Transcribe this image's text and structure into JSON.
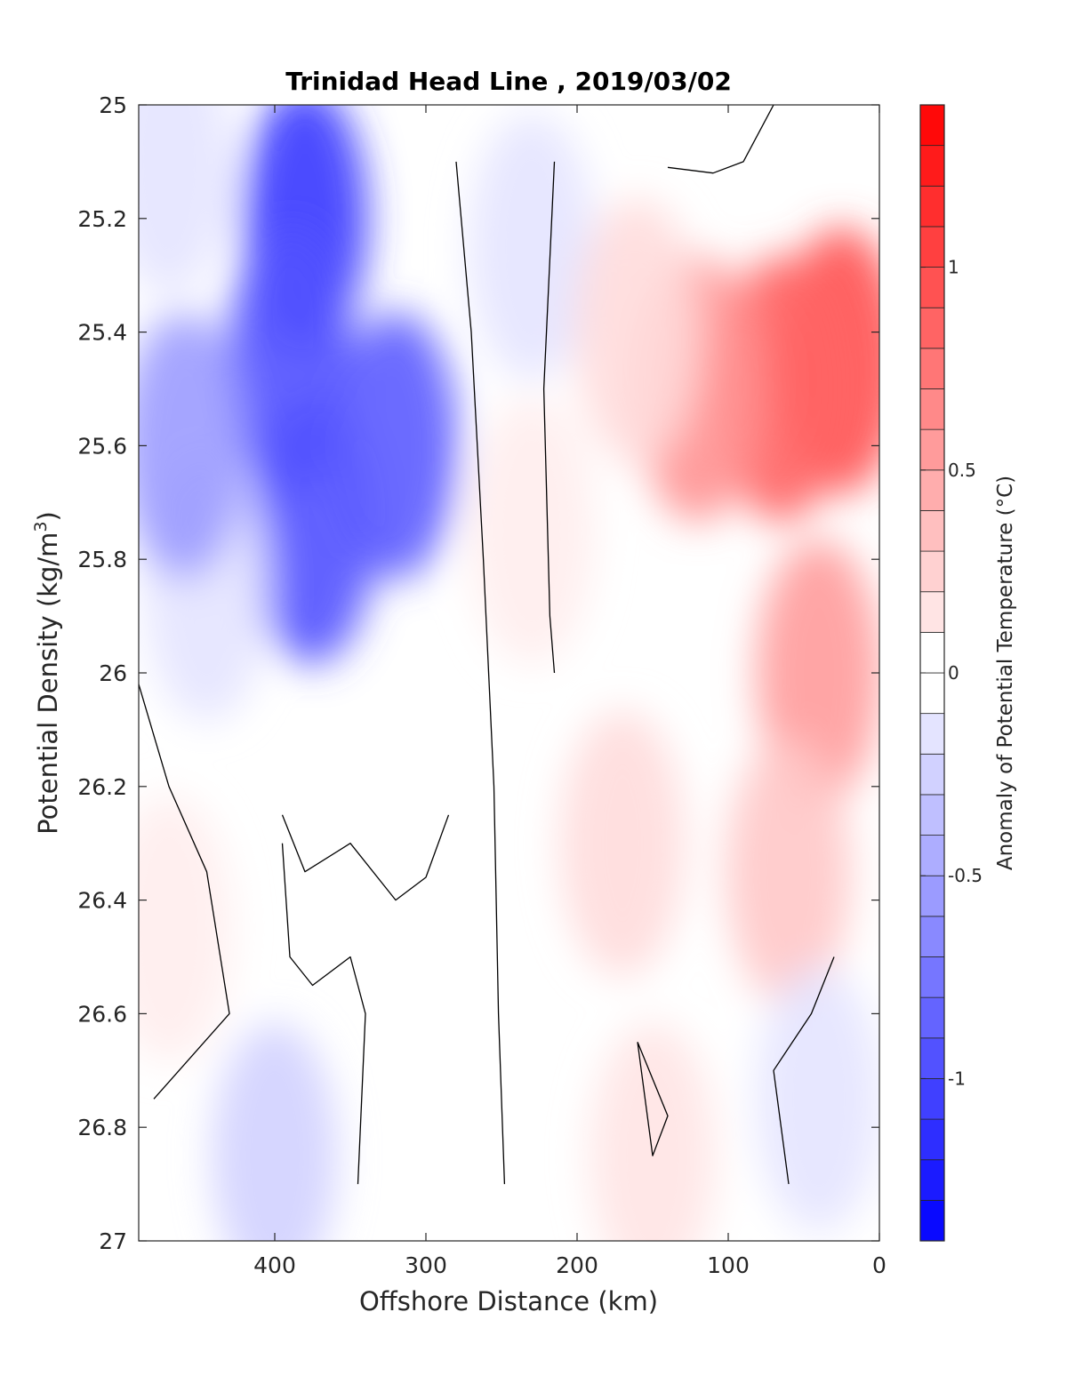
{
  "chart_data": {
    "type": "heatmap",
    "title": "Trinidad Head Line , 2019/03/02",
    "xlabel": "Offshore Distance (km)",
    "ylabel": "Potential Density (kg/m",
    "ylabel_sup": "3",
    "ylabel_close": ")",
    "xlim": [
      490,
      0
    ],
    "ylim": [
      25,
      27
    ],
    "x_ticks": [
      400,
      300,
      200,
      100,
      0
    ],
    "y_ticks": [
      25,
      25.2,
      25.4,
      25.6,
      25.8,
      26,
      26.2,
      26.4,
      26.6,
      26.8,
      27
    ],
    "colorbar": {
      "label": "Anomaly of Potential Temperature (°C)",
      "range": [
        -1.4,
        1.4
      ],
      "step": 0.1,
      "ticks": [
        1,
        0.5,
        0,
        -0.5,
        -1
      ],
      "colormap": "blue-white-red",
      "low_color": "#0000ff",
      "mid_color": "#ffffff",
      "high_color": "#ff0000"
    },
    "features": [
      {
        "x": 380,
        "y": 25.2,
        "value": -1.1
      },
      {
        "x": 390,
        "y": 25.45,
        "value": -0.95
      },
      {
        "x": 375,
        "y": 25.75,
        "value": -0.95
      },
      {
        "x": 320,
        "y": 25.6,
        "value": -0.9
      },
      {
        "x": 470,
        "y": 25.1,
        "value": -0.15
      },
      {
        "x": 445,
        "y": 25.85,
        "value": -0.15
      },
      {
        "x": 460,
        "y": 25.6,
        "value": -0.55
      },
      {
        "x": 230,
        "y": 25.25,
        "value": -0.15
      },
      {
        "x": 25,
        "y": 25.45,
        "value": 0.95
      },
      {
        "x": 65,
        "y": 25.5,
        "value": 0.85
      },
      {
        "x": 120,
        "y": 25.5,
        "value": 0.6
      },
      {
        "x": 40,
        "y": 26.0,
        "value": 0.55
      },
      {
        "x": 160,
        "y": 25.4,
        "value": 0.2
      },
      {
        "x": 230,
        "y": 25.75,
        "value": 0.1
      },
      {
        "x": 170,
        "y": 26.3,
        "value": 0.2
      },
      {
        "x": 60,
        "y": 26.35,
        "value": 0.3
      },
      {
        "x": 400,
        "y": 26.85,
        "value": -0.25
      },
      {
        "x": 40,
        "y": 26.75,
        "value": -0.15
      },
      {
        "x": 150,
        "y": 26.85,
        "value": 0.15
      },
      {
        "x": 470,
        "y": 26.45,
        "value": 0.1
      }
    ]
  }
}
